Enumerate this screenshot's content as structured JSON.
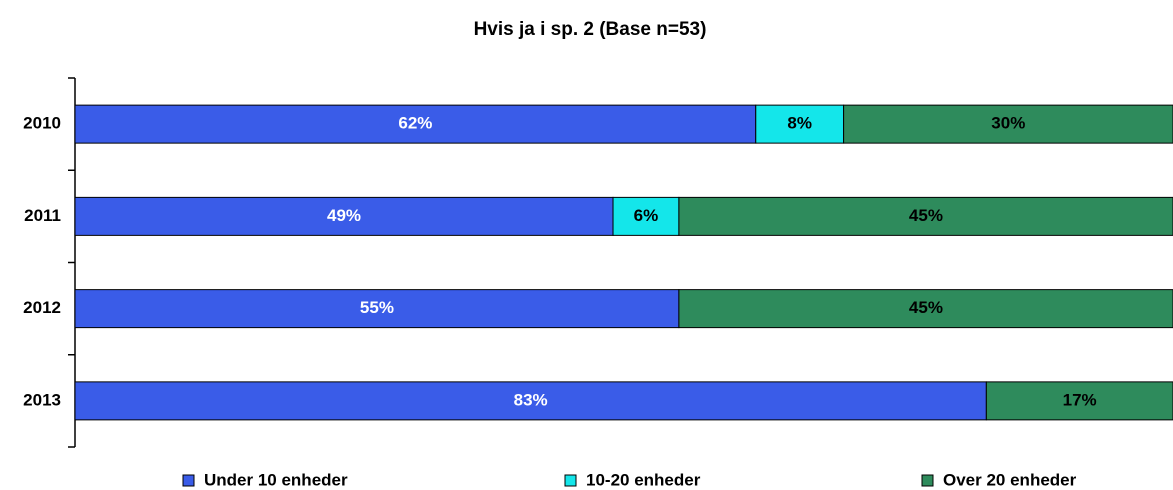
{
  "chart_data": {
    "type": "stacked_barh",
    "title": "Hvis ja i sp. 2 (Base n=53)",
    "categories": [
      "2010",
      "2011",
      "2012",
      "2013"
    ],
    "series": [
      {
        "name": "Under 10 enheder",
        "color": "#3a5ce8",
        "label_color": "#ffffff",
        "values": [
          62,
          49,
          55,
          83
        ],
        "value_labels": [
          "62%",
          "49%",
          "55%",
          "83%"
        ]
      },
      {
        "name": "10-20 enheder",
        "color": "#14e6ea",
        "label_color": "#000000",
        "values": [
          8,
          6,
          null,
          null
        ],
        "value_labels": [
          "8%",
          "6%",
          null,
          null
        ]
      },
      {
        "name": "Over 20 enheder",
        "color": "#2e8b5c",
        "label_color": "#000000",
        "values": [
          30,
          45,
          45,
          17
        ],
        "value_labels": [
          "30%",
          "45%",
          "45%",
          "17%"
        ]
      }
    ],
    "xlim": [
      0,
      100
    ]
  }
}
